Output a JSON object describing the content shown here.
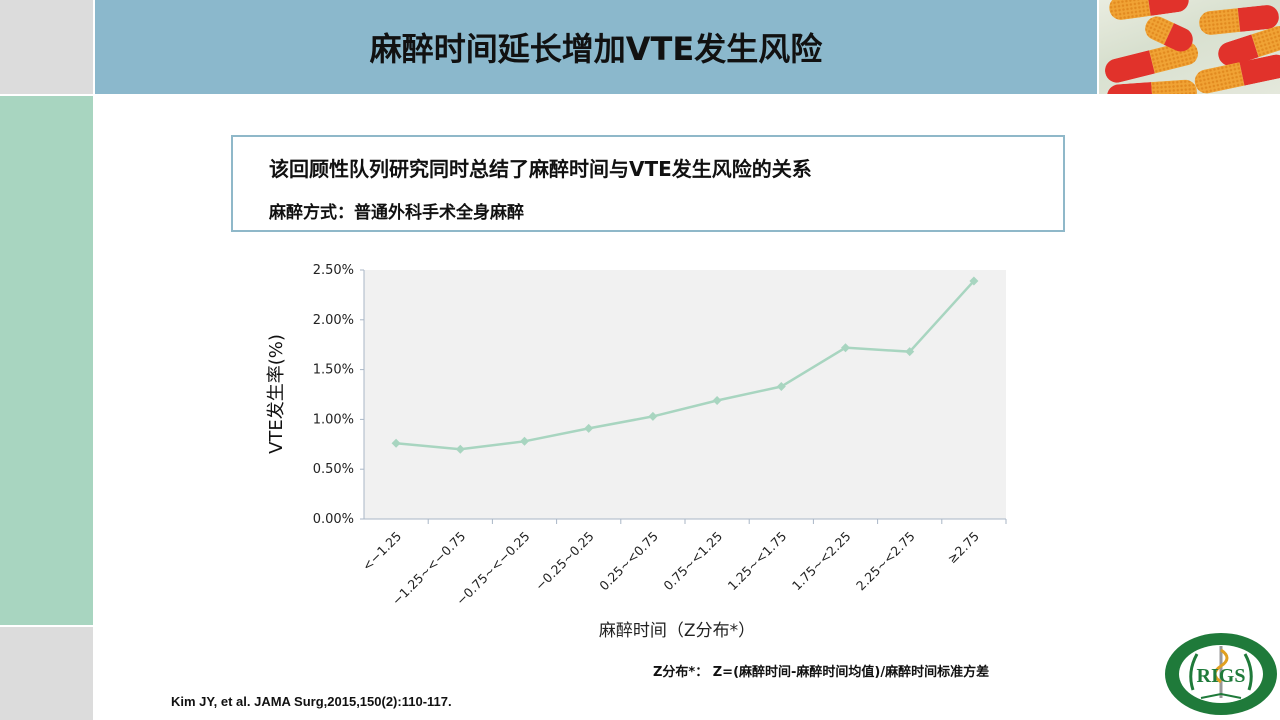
{
  "slide": {
    "title": "麻醉时间延长增加VTE发生风险",
    "info_box": {
      "line1": "该回顾性队列研究同时总结了麻醉时间与VTE发生风险的关系",
      "line2": "麻醉方式：普通外科手术全身麻醉"
    },
    "footnote": "Z分布*： Z=(麻醉时间-麻醉时间均值)/麻醉时间标准方差",
    "citation": "Kim JY, et al. JAMA Surg,2015,150(2):110-117.",
    "logo_text": "RIGS",
    "header_image": "capsule-pills-photo",
    "colors": {
      "header_bar": "#8bb8cc",
      "side_green": "#a8d5c0",
      "side_grey": "#dcdcdc",
      "line": "#a8d5c0",
      "plot_bg": "#f1f1f1",
      "logo_green": "#1f7a3a"
    }
  },
  "chart_data": {
    "type": "line",
    "title": "",
    "xlabel": "麻醉时间（Z分布*）",
    "ylabel": "VTE发生率(%)",
    "categories": [
      "<−1.25",
      "−1.25~<−0.75",
      "−0.75~<−0.25",
      "−0.25~0.25",
      "0.25~<0.75",
      "0.75~<1.25",
      "1.25~<1.75",
      "1.75~<2.25",
      "2.25~<2.75",
      "≥2.75"
    ],
    "series": [
      {
        "name": "VTE发生率",
        "values": [
          0.76,
          0.7,
          0.78,
          0.91,
          1.03,
          1.19,
          1.33,
          1.72,
          1.68,
          2.39
        ]
      }
    ],
    "ylim": [
      0,
      2.5
    ],
    "yticks": [
      "0.00%",
      "0.50%",
      "1.00%",
      "1.50%",
      "2.00%",
      "2.50%"
    ],
    "grid": false,
    "legend": "none",
    "marker": "diamond"
  }
}
